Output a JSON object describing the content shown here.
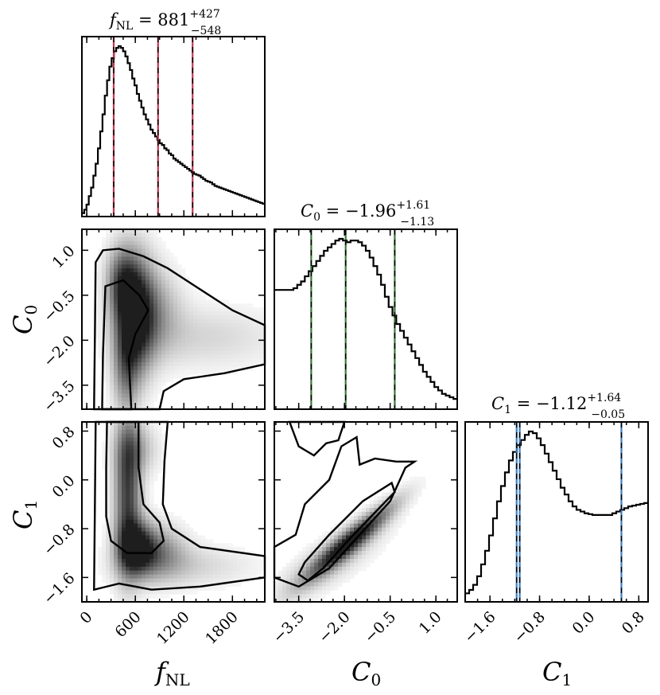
{
  "chart_data": {
    "type": "corner",
    "parameters": [
      {
        "name": "f_NL",
        "label_main": "f",
        "label_sub": "NL",
        "range": [
          -60,
          2200
        ],
        "ticks": [
          0,
          600,
          1200,
          1800
        ],
        "tick_labels": [
          "0",
          "600",
          "1200",
          "1800"
        ],
        "title_main": "f",
        "title_sub": "NL",
        "title_rest": " = 881",
        "title_plus": "+427",
        "title_minus": "−548",
        "quantiles": [
          333,
          881,
          1308
        ],
        "quantile_color": "#c0394f",
        "hist": [
          0.02,
          0.04,
          0.07,
          0.12,
          0.17,
          0.24,
          0.31,
          0.4,
          0.5,
          0.6,
          0.71,
          0.8,
          0.88,
          0.93,
          0.97,
          0.99,
          1.0,
          0.99,
          0.97,
          0.94,
          0.9,
          0.86,
          0.81,
          0.77,
          0.72,
          0.68,
          0.64,
          0.6,
          0.57,
          0.54,
          0.51,
          0.49,
          0.47,
          0.45,
          0.43,
          0.42,
          0.4,
          0.39,
          0.37,
          0.36,
          0.34,
          0.33,
          0.32,
          0.31,
          0.3,
          0.29,
          0.28,
          0.27,
          0.26,
          0.25,
          0.245,
          0.24,
          0.23,
          0.22,
          0.21,
          0.205,
          0.2,
          0.19,
          0.18,
          0.175,
          0.17,
          0.165,
          0.16,
          0.155,
          0.15,
          0.145,
          0.14,
          0.135,
          0.13,
          0.125,
          0.12,
          0.115,
          0.11,
          0.105,
          0.1,
          0.095,
          0.09,
          0.085,
          0.08,
          0.075
        ]
      },
      {
        "name": "C_0",
        "label_main": "C",
        "label_sub": "0",
        "range": [
          -4.3,
          1.7
        ],
        "ticks": [
          -3.5,
          -2.0,
          -0.5,
          1.0
        ],
        "tick_labels": [
          "−3.5",
          "−2.0",
          "−0.5",
          "1.0"
        ],
        "title_main": "C",
        "title_sub": "0",
        "title_rest": " = −1.96",
        "title_plus": "+1.61",
        "title_minus": "−1.13",
        "quantiles": [
          -3.09,
          -1.96,
          -0.35
        ],
        "quantile_color": "#3b7a3b",
        "hist": [
          0.7,
          0.7,
          0.7,
          0.7,
          0.7,
          0.71,
          0.73,
          0.75,
          0.78,
          0.81,
          0.84,
          0.87,
          0.9,
          0.93,
          0.95,
          0.97,
          0.99,
          1.0,
          0.99,
          0.98,
          0.99,
          0.99,
          0.98,
          0.96,
          0.93,
          0.89,
          0.84,
          0.79,
          0.73,
          0.66,
          0.6,
          0.55,
          0.5,
          0.46,
          0.42,
          0.38,
          0.34,
          0.3,
          0.26,
          0.22,
          0.19,
          0.16,
          0.13,
          0.11,
          0.09,
          0.08,
          0.07,
          0.06
        ]
      },
      {
        "name": "C_1",
        "label_main": "C",
        "label_sub": "1",
        "range": [
          -2.0,
          0.95
        ],
        "ticks": [
          -1.6,
          -0.8,
          0.0,
          0.8
        ],
        "tick_labels": [
          "−1.6",
          "−0.8",
          "0.0",
          "0.8"
        ],
        "title_main": "C",
        "title_sub": "1",
        "title_rest": " = −1.12",
        "title_plus": "+1.64",
        "title_minus": "−0.05",
        "quantiles": [
          -1.17,
          -1.12,
          0.52
        ],
        "quantile_color": "#3f7ebd",
        "hist": [
          0.05,
          0.07,
          0.1,
          0.15,
          0.22,
          0.3,
          0.39,
          0.49,
          0.59,
          0.68,
          0.76,
          0.83,
          0.88,
          0.92,
          0.95,
          0.98,
          1.0,
          0.99,
          0.96,
          0.92,
          0.87,
          0.82,
          0.77,
          0.72,
          0.67,
          0.63,
          0.59,
          0.56,
          0.54,
          0.53,
          0.52,
          0.515,
          0.51,
          0.51,
          0.51,
          0.51,
          0.51,
          0.52,
          0.53,
          0.54,
          0.55,
          0.56,
          0.565,
          0.57,
          0.575,
          0.58
        ]
      }
    ]
  },
  "colors": {
    "frame": "#000000",
    "density": "#202020"
  }
}
